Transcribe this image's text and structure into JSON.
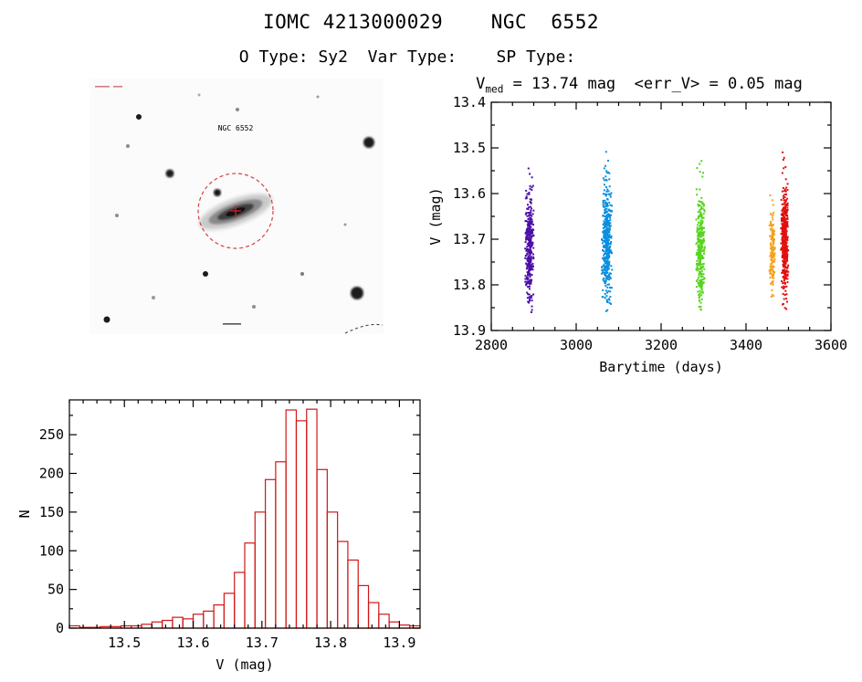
{
  "header": {
    "title": "IOMC 4213000029    NGC  6552",
    "subtitle": "O Type: Sy2  Var Type:    SP Type:"
  },
  "sky_image": {
    "source_label": "NGC 6552"
  },
  "lightcurve_header": {
    "prefix": "V",
    "sub": "med",
    "rest": " = 13.74 mag  <err_V> = 0.05 mag"
  },
  "chart_data": [
    {
      "id": "lightcurve",
      "type": "scatter",
      "title": "V_med = 13.74 mag <err_V> = 0.05 mag",
      "xlabel": "Barytime (days)",
      "ylabel": "V (mag)",
      "xlim": [
        2800,
        3600
      ],
      "ylim": [
        13.4,
        13.9
      ],
      "y_inverted_magnitude_axis": true,
      "grid": false,
      "xticks": [
        "2800",
        "3000",
        "3200",
        "3400",
        "3600"
      ],
      "yticks": [
        "13.4",
        "13.5",
        "13.6",
        "13.7",
        "13.8",
        "13.9"
      ],
      "xminor_step": 50,
      "yminor_step": 0.05,
      "clusters": [
        {
          "name": "epoch-1-purple",
          "color": "#4b0ea6",
          "x_center": 2890,
          "x_spread": 11,
          "y_center": 13.715,
          "y_sigma": 0.058,
          "y_min": 13.48,
          "y_max": 13.87,
          "n": 320
        },
        {
          "name": "epoch-2-blue",
          "color": "#0a8fe0",
          "x_center": 3072,
          "x_spread": 13,
          "y_center": 13.705,
          "y_sigma": 0.065,
          "y_min": 13.42,
          "y_max": 13.86,
          "n": 420
        },
        {
          "name": "epoch-3-green",
          "color": "#56d41c",
          "x_center": 3293,
          "x_spread": 11,
          "y_center": 13.72,
          "y_sigma": 0.058,
          "y_min": 13.5,
          "y_max": 13.86,
          "n": 300
        },
        {
          "name": "epoch-4-orange",
          "color": "#f5a21b",
          "x_center": 3462,
          "x_spread": 7,
          "y_center": 13.72,
          "y_sigma": 0.05,
          "y_min": 13.56,
          "y_max": 13.84,
          "n": 160
        },
        {
          "name": "epoch-5-red",
          "color": "#e01010",
          "x_center": 3491,
          "x_spread": 9,
          "y_center": 13.7,
          "y_sigma": 0.062,
          "y_min": 13.44,
          "y_max": 13.88,
          "n": 420
        }
      ]
    },
    {
      "id": "histogram",
      "type": "bar",
      "title": "",
      "xlabel": "V (mag)",
      "ylabel": "N",
      "xlim": [
        13.42,
        13.93
      ],
      "ylim": [
        0,
        295
      ],
      "grid": false,
      "bar_color": "#cf1717",
      "xticks": [
        "13.5",
        "13.6",
        "13.7",
        "13.8",
        "13.9"
      ],
      "yticks": [
        "0",
        "50",
        "100",
        "150",
        "200",
        "250"
      ],
      "xminor_step": 0.02,
      "yminor_step": 25,
      "bin_start": 13.42,
      "bin_width": 0.015,
      "counts": [
        3,
        1,
        1,
        2,
        2,
        3,
        3,
        5,
        8,
        10,
        14,
        12,
        18,
        22,
        30,
        45,
        72,
        110,
        150,
        192,
        215,
        282,
        268,
        283,
        205,
        150,
        112,
        88,
        55,
        33,
        18,
        8,
        4,
        3
      ]
    }
  ]
}
